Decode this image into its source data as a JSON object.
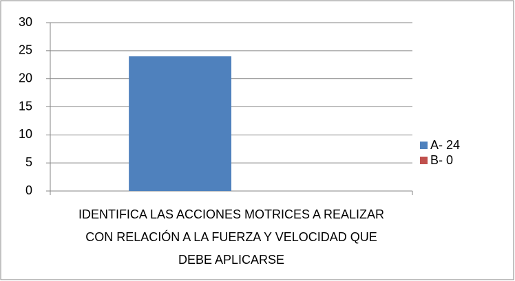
{
  "chart_data": {
    "type": "bar",
    "categories": [
      "IDENTIFICA LAS ACCIONES MOTRICES A REALIZAR CON RELACIÓN A LA FUERZA Y VELOCIDAD QUE DEBE APLICARSE"
    ],
    "series": [
      {
        "name": "A- 24",
        "color": "#4f81bd",
        "values": [
          24
        ]
      },
      {
        "name": "B- 0",
        "color": "#c0504d",
        "values": [
          0
        ]
      }
    ],
    "ylim": [
      0,
      30
    ],
    "yticks": [
      0,
      5,
      10,
      15,
      20,
      25,
      30
    ],
    "grid": true,
    "legend": "right"
  }
}
